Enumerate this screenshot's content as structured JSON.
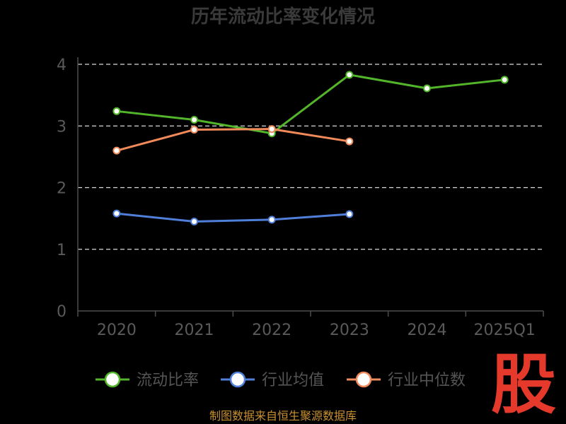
{
  "title": "历年流动比率变化情况",
  "footer": "制图数据来自恒生聚源数据库",
  "watermark": "股",
  "colors": {
    "background": "#000000",
    "grid": "#d9d9d9",
    "axis": "#4d4d4d",
    "watermark": "#e53a2b",
    "footer": "#c8902f"
  },
  "chart_data": {
    "type": "line",
    "categories": [
      "2020",
      "2021",
      "2022",
      "2023",
      "2024",
      "2025Q1"
    ],
    "ylim": [
      0,
      4
    ],
    "yticks": [
      "0",
      "1",
      "2",
      "3",
      "4"
    ],
    "grid": true,
    "legend_position": "bottom",
    "series": [
      {
        "name": "流动比率",
        "color": "#52b52a",
        "values": [
          3.24,
          3.1,
          2.88,
          3.83,
          3.61,
          3.75
        ]
      },
      {
        "name": "行业均值",
        "color": "#4f7fd8",
        "values": [
          1.58,
          1.45,
          1.48,
          1.57,
          null,
          null
        ]
      },
      {
        "name": "行业中位数",
        "color": "#f08a5a",
        "values": [
          2.6,
          2.94,
          2.95,
          2.75,
          null,
          null
        ]
      }
    ]
  }
}
